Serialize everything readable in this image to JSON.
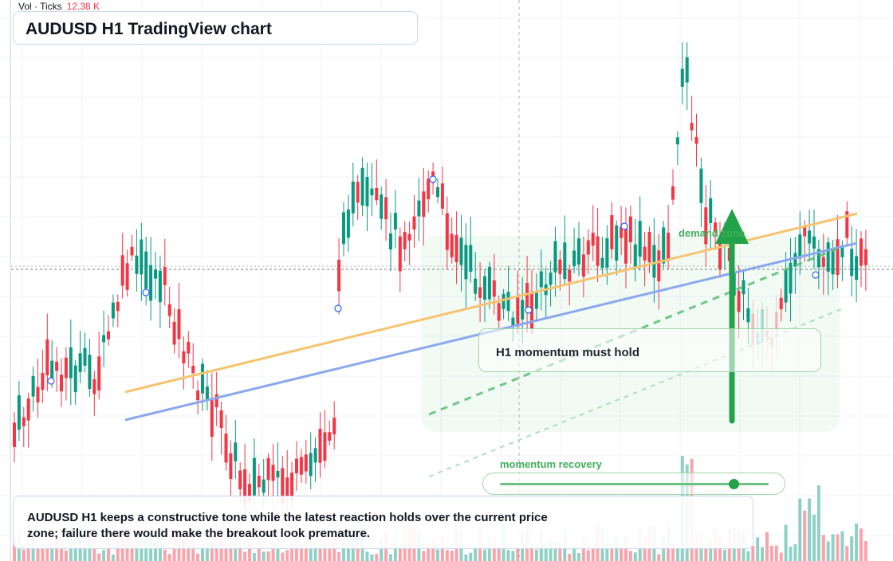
{
  "header": {
    "title": "AUDUSD H1 TradingView chart",
    "volume_label": "Vol · Ticks",
    "volume_value": "12.38 K"
  },
  "annotations": {
    "zone_card": "H1 momentum must hold",
    "demand_zone_label": "demand zone",
    "momentum_label": "momentum recovery",
    "momentum_level": 0.87
  },
  "caption": {
    "text": "AUDUSD H1 keeps a constructive tone while the latest reaction holds over the current price zone; failure there would make the breakout look premature."
  },
  "colors": {
    "bull": "#089981",
    "bear": "#f23645",
    "orange_line": "#f7c36f",
    "blue_line": "#8aa8ee",
    "zone_green": "#22a249"
  },
  "icons": {
    "momentum_arrow": "up-arrow-icon",
    "anchor_point": "circle-handle-icon"
  }
}
